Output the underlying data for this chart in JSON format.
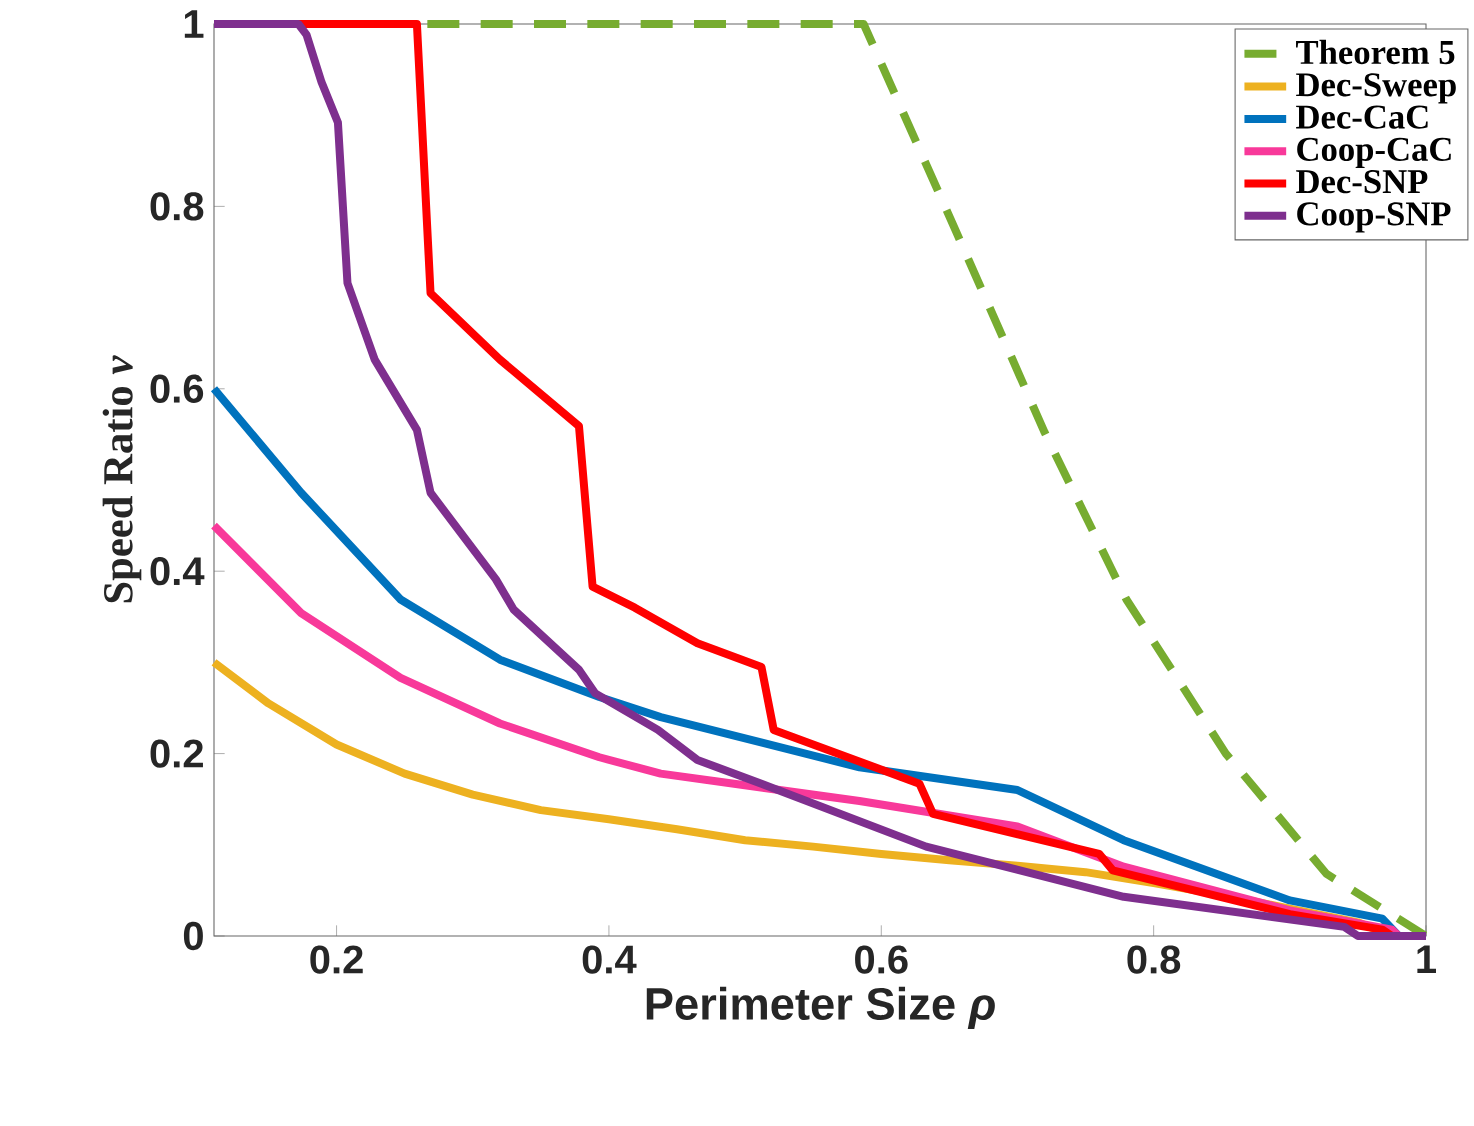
{
  "chart_data": {
    "type": "line",
    "xlabel": "Perimeter Size *ρ*",
    "ylabel": "Speed Ratio *v*",
    "xlim": [
      0.11,
      1
    ],
    "ylim": [
      0,
      1
    ],
    "xticks": [
      0.2,
      0.4,
      0.6,
      0.8,
      1
    ],
    "yticks": [
      0,
      0.2,
      0.4,
      0.6,
      0.8,
      1
    ],
    "grid": false,
    "legend": "top right",
    "series": [
      {
        "name": "Theorem 5",
        "color": "#77ac30",
        "line_style": "dashed",
        "x": [
          0.11,
          0.587,
          0.653,
          0.72,
          0.78,
          0.853,
          0.927,
          1.0
        ],
        "values": [
          1,
          1,
          0.779,
          0.552,
          0.369,
          0.2,
          0.068,
          0
        ]
      },
      {
        "name": "Dec-Sweep",
        "color": "#edb120",
        "line_style": "solid",
        "x": [
          0.11,
          0.15,
          0.2,
          0.25,
          0.3,
          0.35,
          0.4,
          0.45,
          0.5,
          0.55,
          0.6,
          0.65,
          0.7,
          0.75,
          0.8,
          0.85,
          0.9,
          0.95,
          0.975
        ],
        "values": [
          0.3,
          0.255,
          0.21,
          0.178,
          0.155,
          0.138,
          0.128,
          0.117,
          0.105,
          0.098,
          0.09,
          0.083,
          0.077,
          0.07,
          0.058,
          0.045,
          0.03,
          0.015,
          0
        ]
      },
      {
        "name": "Dec-CaC",
        "color": "#0072bd",
        "line_style": "solid",
        "x": [
          0.11,
          0.174,
          0.247,
          0.32,
          0.393,
          0.438,
          0.584,
          0.7,
          0.778,
          0.9,
          0.968,
          0.98
        ],
        "values": [
          0.6,
          0.486,
          0.369,
          0.303,
          0.262,
          0.24,
          0.185,
          0.16,
          0.105,
          0.039,
          0.019,
          0
        ]
      },
      {
        "name": "Coop-CaC",
        "color": "#f8399a",
        "line_style": "solid",
        "x": [
          0.11,
          0.174,
          0.247,
          0.32,
          0.393,
          0.438,
          0.584,
          0.7,
          0.778,
          0.9,
          0.975,
          0.98
        ],
        "values": [
          0.45,
          0.354,
          0.283,
          0.233,
          0.196,
          0.178,
          0.148,
          0.12,
          0.076,
          0.028,
          0.007,
          0
        ]
      },
      {
        "name": "Dec-SNP",
        "color": "#ff0000",
        "line_style": "solid",
        "x": [
          0.11,
          0.259,
          0.269,
          0.32,
          0.378,
          0.388,
          0.419,
          0.465,
          0.512,
          0.521,
          0.628,
          0.638,
          0.76,
          0.77,
          0.9,
          0.968,
          0.975
        ],
        "values": [
          1,
          1,
          0.705,
          0.632,
          0.559,
          0.383,
          0.36,
          0.321,
          0.295,
          0.226,
          0.167,
          0.134,
          0.09,
          0.072,
          0.024,
          0.007,
          0
        ]
      },
      {
        "name": "Coop-SNP",
        "color": "#7e2f8e",
        "line_style": "solid",
        "x": [
          0.11,
          0.172,
          0.178,
          0.189,
          0.201,
          0.208,
          0.228,
          0.259,
          0.269,
          0.317,
          0.33,
          0.378,
          0.39,
          0.436,
          0.465,
          0.512,
          0.633,
          0.778,
          0.94,
          0.95,
          1.0
        ],
        "values": [
          1,
          1,
          0.988,
          0.936,
          0.892,
          0.716,
          0.632,
          0.555,
          0.486,
          0.391,
          0.358,
          0.292,
          0.266,
          0.226,
          0.193,
          0.167,
          0.098,
          0.043,
          0.01,
          0,
          0
        ]
      }
    ]
  }
}
